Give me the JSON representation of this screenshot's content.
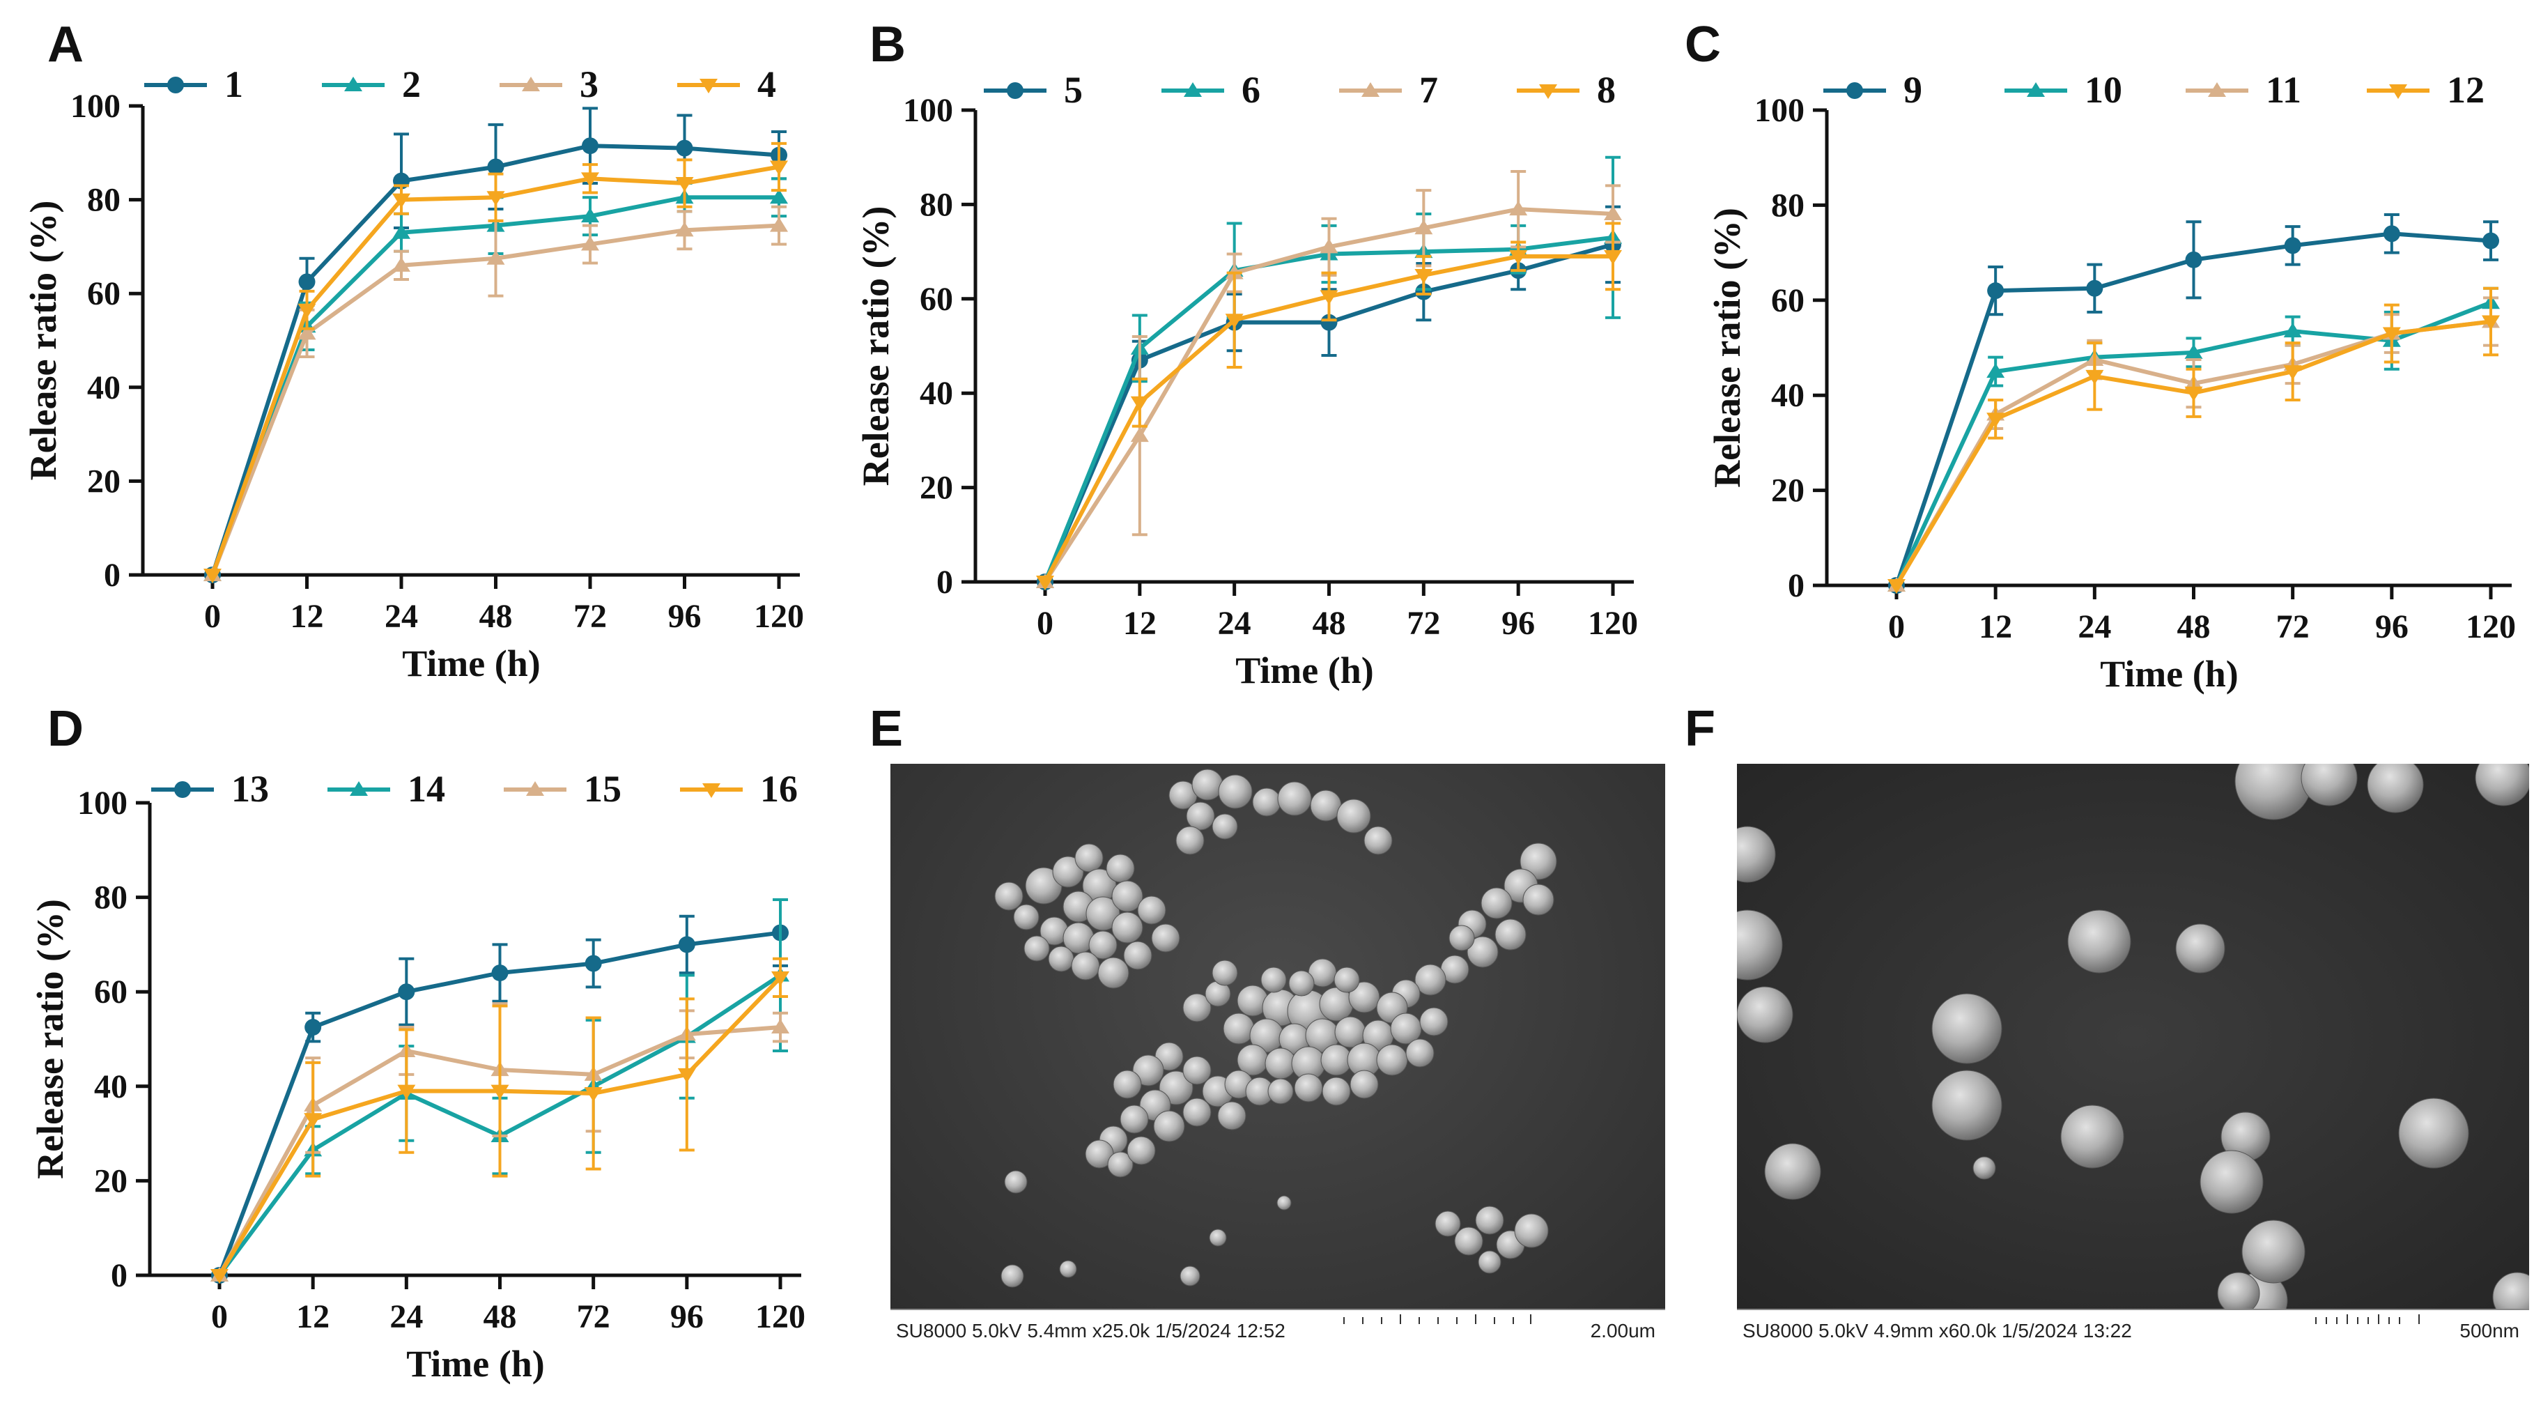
{
  "chart_data": [
    {
      "type": "line",
      "panel": "A",
      "categories": [
        "0",
        "12",
        "24",
        "48",
        "72",
        "96",
        "120"
      ],
      "xlabel": "Time (h)",
      "ylabel": "Release ratio (%)",
      "ylim": [
        0,
        100
      ],
      "yticks": [
        "0",
        "20",
        "40",
        "60",
        "80",
        "100"
      ],
      "series": [
        {
          "name": "1",
          "values": [
            0,
            62.5,
            84,
            87,
            91.5,
            91,
            89.5
          ],
          "errors": [
            0,
            5,
            10,
            9,
            8,
            7,
            5
          ]
        },
        {
          "name": "2",
          "values": [
            0,
            53,
            73,
            74.5,
            76.5,
            80.5,
            80.5
          ],
          "errors": [
            0,
            5,
            4,
            6,
            4,
            3,
            4
          ]
        },
        {
          "name": "3",
          "values": [
            0,
            51.5,
            66,
            67.5,
            70.5,
            73.5,
            74.5
          ],
          "errors": [
            0,
            5,
            3,
            8,
            4,
            4,
            4
          ]
        },
        {
          "name": "4",
          "values": [
            0,
            56.5,
            80,
            80.5,
            84.5,
            83.5,
            87
          ],
          "errors": [
            0,
            4,
            3,
            5,
            3,
            5,
            5
          ]
        }
      ]
    },
    {
      "type": "line",
      "panel": "B",
      "categories": [
        "0",
        "12",
        "24",
        "48",
        "72",
        "96",
        "120"
      ],
      "xlabel": "Time (h)",
      "ylabel": "Release ratio (%)",
      "ylim": [
        0,
        100
      ],
      "yticks": [
        "0",
        "20",
        "40",
        "60",
        "80",
        "100"
      ],
      "series": [
        {
          "name": "5",
          "values": [
            0,
            47,
            55,
            55,
            61.5,
            66,
            71.5
          ],
          "errors": [
            0,
            4,
            6,
            7,
            6,
            4,
            8
          ]
        },
        {
          "name": "6",
          "values": [
            0,
            49.5,
            66,
            69.5,
            70,
            70.5,
            73
          ],
          "errors": [
            0,
            7,
            10,
            6,
            8,
            5,
            17
          ]
        },
        {
          "name": "7",
          "values": [
            0,
            31,
            65.5,
            71,
            75,
            79,
            78
          ],
          "errors": [
            0,
            21,
            4,
            6,
            8,
            8,
            6
          ]
        },
        {
          "name": "8",
          "values": [
            0,
            38,
            55.5,
            60.5,
            65,
            69,
            69
          ],
          "errors": [
            0,
            5,
            10,
            5,
            4,
            3,
            7
          ]
        }
      ]
    },
    {
      "type": "line",
      "panel": "C",
      "categories": [
        "0",
        "12",
        "24",
        "48",
        "72",
        "96",
        "120"
      ],
      "xlabel": "Time (h)",
      "ylabel": "Release ratio (%)",
      "ylim": [
        0,
        100
      ],
      "yticks": [
        "0",
        "20",
        "40",
        "60",
        "80",
        "100"
      ],
      "series": [
        {
          "name": "9",
          "values": [
            0,
            62,
            62.5,
            68.5,
            71.5,
            74,
            72.5
          ],
          "errors": [
            0,
            5,
            5,
            8,
            4,
            4,
            4
          ]
        },
        {
          "name": "10",
          "values": [
            0,
            45,
            48,
            49,
            53.5,
            51.5,
            59.5
          ],
          "errors": [
            0,
            3,
            3,
            3,
            3,
            6,
            3
          ]
        },
        {
          "name": "11",
          "values": [
            0,
            36,
            47.5,
            42.5,
            46.5,
            53,
            55.5
          ],
          "errors": [
            0,
            3,
            4,
            5,
            4,
            4,
            5
          ]
        },
        {
          "name": "12",
          "values": [
            0,
            35,
            44,
            40.5,
            45,
            53,
            55.5
          ],
          "errors": [
            0,
            4,
            7,
            5,
            6,
            6,
            7
          ]
        }
      ]
    },
    {
      "type": "line",
      "panel": "D",
      "categories": [
        "0",
        "12",
        "24",
        "48",
        "72",
        "96",
        "120"
      ],
      "xlabel": "Time (h)",
      "ylabel": "Release ratio (%)",
      "ylim": [
        0,
        100
      ],
      "yticks": [
        "0",
        "20",
        "40",
        "60",
        "80",
        "100"
      ],
      "series": [
        {
          "name": "13",
          "values": [
            0,
            52.5,
            60,
            64,
            66,
            70,
            72.5
          ],
          "errors": [
            0,
            3,
            7,
            6,
            5,
            6,
            7
          ]
        },
        {
          "name": "14",
          "values": [
            0,
            26.5,
            38.5,
            29.5,
            40,
            50.5,
            63.5
          ],
          "errors": [
            0,
            5,
            10,
            8,
            14,
            13,
            16
          ]
        },
        {
          "name": "15",
          "values": [
            0,
            36,
            47.5,
            43.5,
            42.5,
            51,
            52.5
          ],
          "errors": [
            0,
            10,
            5,
            14,
            12,
            5,
            3
          ]
        },
        {
          "name": "16",
          "values": [
            0,
            33,
            39,
            39,
            38.5,
            42.5,
            63
          ],
          "errors": [
            0,
            12,
            13,
            18,
            16,
            16,
            4
          ]
        }
      ]
    }
  ],
  "panel_labels": [
    "A",
    "B",
    "C",
    "D",
    "E",
    "F"
  ],
  "series_colors": [
    "#156a8a",
    "#18a3a3",
    "#d8b08a",
    "#f5a61f"
  ],
  "sem_images": [
    {
      "panel": "E",
      "info": "SU8000 5.0kV 5.4mm x25.0k 1/5/2024 12:52",
      "scale": "2.00um"
    },
    {
      "panel": "F",
      "info": "SU8000 5.0kV 4.9mm x60.0k 1/5/2024 13:22",
      "scale": "500nm"
    }
  ]
}
